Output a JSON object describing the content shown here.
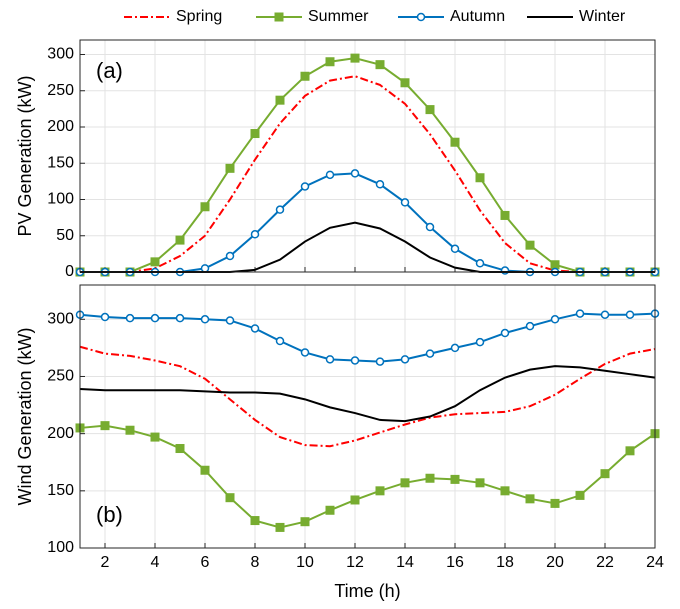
{
  "chart_data": [
    {
      "type": "line",
      "ylabel": "PV Generation (kW)",
      "annotation": "(a)",
      "x": [
        1,
        2,
        3,
        4,
        5,
        6,
        7,
        8,
        9,
        10,
        11,
        12,
        13,
        14,
        15,
        16,
        17,
        18,
        19,
        20,
        21,
        22,
        23,
        24
      ],
      "xlim": [
        1,
        24
      ],
      "ylim": [
        0,
        320
      ],
      "yticks": [
        0,
        50,
        100,
        150,
        200,
        250,
        300
      ],
      "grid": true,
      "series": [
        {
          "name": "Spring",
          "color": "#ff0000",
          "dash": "dashdot",
          "marker": "none",
          "values": [
            0,
            0,
            0,
            5,
            22,
            50,
            100,
            155,
            205,
            243,
            264,
            270,
            258,
            232,
            190,
            140,
            85,
            40,
            12,
            2,
            0,
            0,
            0,
            0
          ]
        },
        {
          "name": "Summer",
          "color": "#77ac30",
          "dash": "solid",
          "marker": "square",
          "values": [
            0,
            0,
            0,
            14,
            44,
            90,
            143,
            191,
            237,
            270,
            290,
            295,
            286,
            261,
            224,
            179,
            130,
            78,
            37,
            10,
            0,
            0,
            0,
            0
          ]
        },
        {
          "name": "Autumn",
          "color": "#0072bd",
          "dash": "solid",
          "marker": "circle",
          "values": [
            0,
            0,
            0,
            0,
            0,
            5,
            22,
            52,
            86,
            118,
            134,
            136,
            121,
            96,
            62,
            32,
            12,
            2,
            0,
            0,
            0,
            0,
            0,
            0
          ]
        },
        {
          "name": "Winter",
          "color": "#000000",
          "dash": "solid",
          "marker": "none",
          "values": [
            0,
            0,
            0,
            0,
            0,
            0,
            0,
            3,
            17,
            42,
            61,
            68,
            60,
            42,
            20,
            6,
            0,
            0,
            0,
            0,
            0,
            0,
            0,
            0
          ]
        }
      ]
    },
    {
      "type": "line",
      "ylabel": "Wind Generation (kW)",
      "xlabel": "Time (h)",
      "annotation": "(b)",
      "x": [
        1,
        2,
        3,
        4,
        5,
        6,
        7,
        8,
        9,
        10,
        11,
        12,
        13,
        14,
        15,
        16,
        17,
        18,
        19,
        20,
        21,
        22,
        23,
        24
      ],
      "xlim": [
        1,
        24
      ],
      "xticks": [
        2,
        4,
        6,
        8,
        10,
        12,
        14,
        16,
        18,
        20,
        22,
        24
      ],
      "ylim": [
        100,
        330
      ],
      "yticks": [
        100,
        150,
        200,
        250,
        300
      ],
      "grid": true,
      "series": [
        {
          "color": "#ff0000",
          "dash": "dashdot",
          "marker": "none",
          "values": [
            276,
            270,
            268,
            264,
            259,
            248,
            230,
            212,
            197,
            190,
            189,
            194,
            201,
            208,
            214,
            217,
            218,
            219,
            224,
            234,
            248,
            261,
            270,
            274
          ]
        },
        {
          "color": "#77ac30",
          "dash": "solid",
          "marker": "square",
          "values": [
            205,
            207,
            203,
            197,
            187,
            168,
            144,
            124,
            118,
            123,
            133,
            142,
            150,
            157,
            161,
            160,
            157,
            150,
            143,
            139,
            146,
            165,
            185,
            200
          ]
        },
        {
          "color": "#0072bd",
          "dash": "solid",
          "marker": "circle",
          "values": [
            304,
            302,
            301,
            301,
            301,
            300,
            299,
            292,
            281,
            271,
            265,
            264,
            263,
            265,
            270,
            275,
            280,
            288,
            294,
            300,
            305,
            304,
            304,
            305
          ]
        },
        {
          "color": "#000000",
          "dash": "solid",
          "marker": "none",
          "values": [
            239,
            238,
            238,
            238,
            238,
            237,
            236,
            236,
            235,
            230,
            223,
            218,
            212,
            211,
            215,
            224,
            238,
            249,
            256,
            259,
            258,
            255,
            252,
            249
          ]
        }
      ]
    }
  ]
}
